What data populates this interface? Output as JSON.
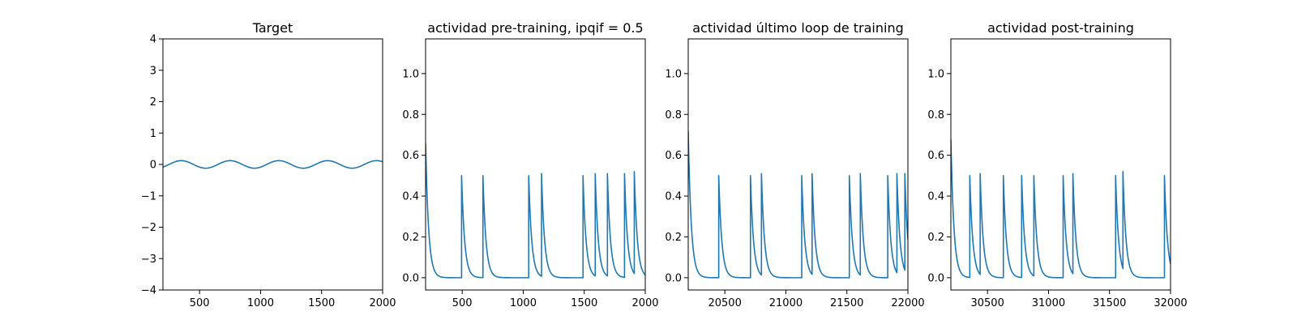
{
  "chart_data": [
    {
      "type": "line",
      "title": "Target",
      "xlabel": "",
      "ylabel": "",
      "xlim": [
        200,
        2000
      ],
      "ylim": [
        -4,
        4
      ],
      "xticks": [
        500,
        1000,
        1500,
        2000
      ],
      "yticks": [
        -4,
        -3,
        -2,
        -1,
        0,
        1,
        2,
        3,
        4
      ],
      "grid": false,
      "series": [
        {
          "kind": "sine",
          "amplitude": 0.12,
          "period": 400,
          "peak_x": 350,
          "color": "#1f77b4"
        }
      ]
    },
    {
      "type": "line",
      "title": "actividad pre-training, ipqif = 0.5",
      "xlabel": "",
      "ylabel": "",
      "xlim": [
        200,
        2000
      ],
      "ylim": [
        -0.06,
        1.17
      ],
      "xticks": [
        500,
        1000,
        1500,
        2000
      ],
      "yticks": [
        0.0,
        0.2,
        0.4,
        0.6,
        0.8,
        1.0
      ],
      "grid": false,
      "series": [
        {
          "kind": "spike_decay",
          "color": "#1f77b4",
          "start_value": 0.66,
          "decay": 25,
          "spikes": [
            {
              "x": 495,
              "y": 0.5
            },
            {
              "x": 670,
              "y": 0.5
            },
            {
              "x": 1045,
              "y": 0.5
            },
            {
              "x": 1150,
              "y": 0.51
            },
            {
              "x": 1490,
              "y": 0.5
            },
            {
              "x": 1590,
              "y": 0.51
            },
            {
              "x": 1690,
              "y": 0.51
            },
            {
              "x": 1830,
              "y": 0.51
            },
            {
              "x": 1910,
              "y": 0.52
            }
          ]
        }
      ]
    },
    {
      "type": "line",
      "title": "actividad último loop de training",
      "xlabel": "",
      "ylabel": "",
      "xlim": [
        20200,
        22000
      ],
      "ylim": [
        -0.06,
        1.17
      ],
      "xticks": [
        20500,
        21000,
        21500,
        22000
      ],
      "yticks": [
        0.0,
        0.2,
        0.4,
        0.6,
        0.8,
        1.0
      ],
      "grid": false,
      "series": [
        {
          "kind": "spike_decay",
          "color": "#1f77b4",
          "start_value": 0.72,
          "decay": 25,
          "spikes": [
            {
              "x": 20450,
              "y": 0.5
            },
            {
              "x": 20710,
              "y": 0.5
            },
            {
              "x": 20800,
              "y": 0.51
            },
            {
              "x": 21130,
              "y": 0.5
            },
            {
              "x": 21215,
              "y": 0.51
            },
            {
              "x": 21520,
              "y": 0.5
            },
            {
              "x": 21610,
              "y": 0.51
            },
            {
              "x": 21835,
              "y": 0.5
            },
            {
              "x": 21910,
              "y": 0.51
            },
            {
              "x": 21975,
              "y": 0.51
            }
          ]
        }
      ]
    },
    {
      "type": "line",
      "title": "actividad post-training",
      "xlabel": "",
      "ylabel": "",
      "xlim": [
        30200,
        32000
      ],
      "ylim": [
        -0.06,
        1.17
      ],
      "xticks": [
        30500,
        31000,
        31500,
        32000
      ],
      "yticks": [
        0.0,
        0.2,
        0.4,
        0.6,
        0.8,
        1.0
      ],
      "grid": false,
      "series": [
        {
          "kind": "spike_decay",
          "color": "#1f77b4",
          "start_value": 0.68,
          "decay": 25,
          "spikes": [
            {
              "x": 30355,
              "y": 0.5
            },
            {
              "x": 30440,
              "y": 0.51
            },
            {
              "x": 30630,
              "y": 0.5
            },
            {
              "x": 30780,
              "y": 0.5
            },
            {
              "x": 30880,
              "y": 0.5
            },
            {
              "x": 31120,
              "y": 0.5
            },
            {
              "x": 31200,
              "y": 0.51
            },
            {
              "x": 31550,
              "y": 0.5
            },
            {
              "x": 31610,
              "y": 0.52
            },
            {
              "x": 31950,
              "y": 0.5
            }
          ]
        }
      ]
    }
  ]
}
